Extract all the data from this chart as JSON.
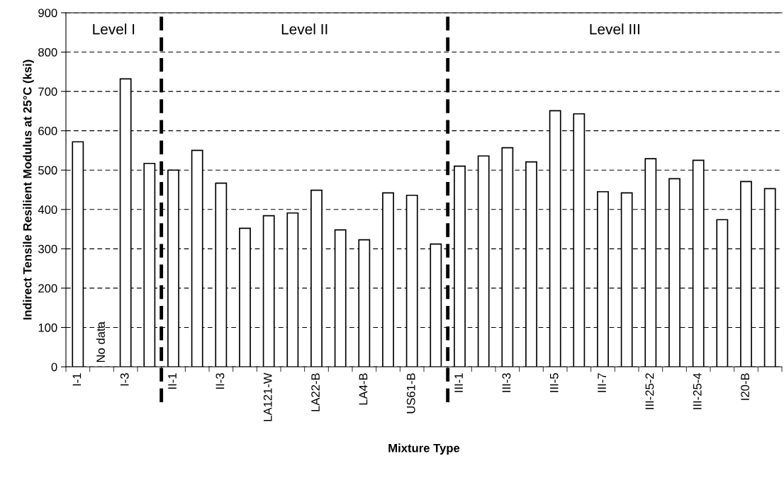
{
  "chart_data": {
    "type": "bar",
    "xlabel": "Mixture Type",
    "ylabel": "Indirect Tensile Resilient Modulus at 25°C (ksi)",
    "categories": [
      "I-1",
      null,
      "I-3",
      null,
      "II-1",
      null,
      "II-3",
      null,
      "LA121-W",
      null,
      "LA22-B",
      null,
      "LA4-B",
      null,
      "US61-B",
      null,
      "III-1",
      null,
      "III-3",
      null,
      "III-5",
      null,
      "III-7",
      null,
      "III-25-2",
      null,
      "III-25-4",
      null,
      "I20-B",
      null
    ],
    "values": [
      572,
      null,
      732,
      517,
      500,
      550,
      467,
      352,
      384,
      391,
      449,
      348,
      323,
      442,
      436,
      312,
      510,
      536,
      557,
      521,
      651,
      643,
      445,
      442,
      529,
      478,
      525,
      374,
      471,
      453
    ],
    "color": "#ffffff",
    "ylim": [
      0,
      900
    ],
    "yticks": [
      0,
      100,
      200,
      300,
      400,
      500,
      600,
      700,
      800,
      900
    ],
    "grid": "y",
    "annotations": [
      "Level I",
      "Level II",
      "Level III",
      "No data"
    ]
  }
}
